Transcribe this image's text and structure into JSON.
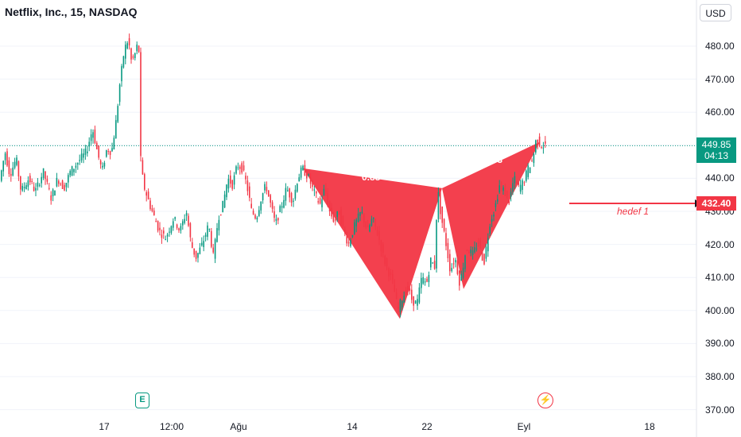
{
  "header": {
    "title": "Netflix, Inc., 15, NASDAQ",
    "currency": "USD"
  },
  "price_axis": {
    "labels": [
      "480.00",
      "470.00",
      "460.00",
      "450.00",
      "440.00",
      "430.00",
      "420.00",
      "410.00",
      "400.00",
      "390.00",
      "380.00",
      "370.00"
    ]
  },
  "time_axis": {
    "labels": [
      "17",
      "12:00",
      "Ağu",
      "14",
      "22",
      "Eyl",
      "18"
    ]
  },
  "last_price": {
    "price": "449.85",
    "countdown": "04:13"
  },
  "target": {
    "price": "432.40",
    "label": "hedef 1"
  },
  "pattern": {
    "ratio_ab": "0.88",
    "ratio_cd": "333"
  },
  "events": {
    "earnings_badge": "E",
    "dividend_icon": "flash-icon"
  },
  "colors": {
    "up": "#089981",
    "down": "#f23645",
    "pattern_fill": "#f23645",
    "target_line": "#f23645",
    "last_price_line": "#089981"
  },
  "chart_data": {
    "type": "candlestick",
    "title": "Netflix, Inc., 15, NASDAQ",
    "ylim": [
      368,
      488
    ],
    "y_ticks": [
      480,
      470,
      460,
      450,
      440,
      430,
      420,
      410,
      400,
      390,
      380,
      370
    ],
    "x_ticks": [
      "17",
      "12:00",
      "Ağu",
      "14",
      "22",
      "Eyl",
      "18"
    ],
    "price_path": [
      [
        0,
        438
      ],
      [
        8,
        448
      ],
      [
        14,
        441
      ],
      [
        22,
        446
      ],
      [
        28,
        436
      ],
      [
        38,
        440
      ],
      [
        46,
        436
      ],
      [
        56,
        442
      ],
      [
        66,
        434
      ],
      [
        74,
        440
      ],
      [
        82,
        437
      ],
      [
        90,
        442
      ],
      [
        100,
        445
      ],
      [
        110,
        448
      ],
      [
        118,
        455
      ],
      [
        124,
        448
      ],
      [
        130,
        442
      ],
      [
        136,
        449
      ],
      [
        142,
        448
      ],
      [
        148,
        458
      ],
      [
        152,
        468
      ],
      [
        158,
        479
      ],
      [
        163,
        482
      ],
      [
        167,
        475
      ],
      [
        172,
        478
      ],
      [
        176,
        482
      ],
      [
        178,
        447
      ],
      [
        182,
        438
      ],
      [
        190,
        432
      ],
      [
        196,
        428
      ],
      [
        202,
        424
      ],
      [
        210,
        422
      ],
      [
        220,
        428
      ],
      [
        228,
        424
      ],
      [
        236,
        430
      ],
      [
        242,
        420
      ],
      [
        248,
        416
      ],
      [
        256,
        420
      ],
      [
        264,
        426
      ],
      [
        270,
        416
      ],
      [
        276,
        428
      ],
      [
        282,
        432
      ],
      [
        288,
        440
      ],
      [
        294,
        438
      ],
      [
        300,
        444
      ],
      [
        306,
        443
      ],
      [
        312,
        438
      ],
      [
        318,
        430
      ],
      [
        324,
        428
      ],
      [
        330,
        434
      ],
      [
        336,
        438
      ],
      [
        342,
        432
      ],
      [
        348,
        426
      ],
      [
        356,
        432
      ],
      [
        362,
        437
      ],
      [
        370,
        433
      ],
      [
        376,
        440
      ],
      [
        382,
        443
      ],
      [
        390,
        440
      ],
      [
        396,
        436
      ],
      [
        404,
        432
      ],
      [
        410,
        437
      ],
      [
        416,
        430
      ],
      [
        422,
        427
      ],
      [
        428,
        430
      ],
      [
        434,
        424
      ],
      [
        440,
        420
      ],
      [
        448,
        426
      ],
      [
        456,
        430
      ],
      [
        464,
        424
      ],
      [
        470,
        428
      ],
      [
        478,
        422
      ],
      [
        484,
        416
      ],
      [
        490,
        412
      ],
      [
        496,
        408
      ],
      [
        502,
        400
      ],
      [
        508,
        404
      ],
      [
        514,
        407
      ],
      [
        520,
        403
      ],
      [
        526,
        402
      ],
      [
        532,
        410
      ],
      [
        538,
        408
      ],
      [
        544,
        416
      ],
      [
        548,
        412
      ],
      [
        552,
        437
      ],
      [
        556,
        429
      ],
      [
        562,
        421
      ],
      [
        568,
        412
      ],
      [
        574,
        416
      ],
      [
        580,
        408
      ],
      [
        588,
        419
      ],
      [
        596,
        417
      ],
      [
        604,
        421
      ],
      [
        610,
        414
      ],
      [
        618,
        427
      ],
      [
        624,
        431
      ],
      [
        630,
        438
      ],
      [
        636,
        436
      ],
      [
        642,
        433
      ],
      [
        648,
        440
      ],
      [
        654,
        437
      ],
      [
        660,
        439
      ],
      [
        666,
        443
      ],
      [
        672,
        446
      ],
      [
        676,
        452
      ],
      [
        682,
        450
      ],
      [
        686,
        449.85
      ]
    ],
    "harmonic_pattern": {
      "X": {
        "x": 381,
        "price": 443
      },
      "A": {
        "x": 503,
        "price": 397.5
      },
      "B": {
        "x": 556,
        "price": 437
      },
      "C": {
        "x": 583,
        "price": 406.5
      },
      "D": {
        "x": 679,
        "price": 451
      }
    },
    "last_price": 449.85,
    "target_price": 432.4,
    "target_line_x": [
      716,
      876
    ]
  }
}
